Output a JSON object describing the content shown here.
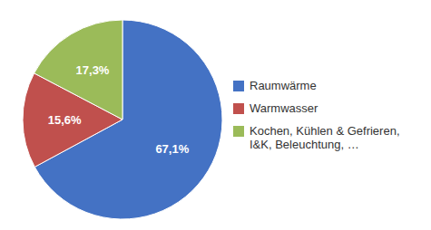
{
  "chart_data": {
    "type": "pie",
    "categories": [
      "Raumwärme",
      "Warmwasser",
      "Kochen, Kühlen & Gefrieren,\nI&K, Beleuchtung, …"
    ],
    "values": [
      67.1,
      15.6,
      17.3
    ],
    "value_labels": [
      "67,1%",
      "15,6%",
      "17,3%"
    ],
    "colors": [
      "#4472C4",
      "#C0504D",
      "#9BBB59"
    ],
    "data_labels": true,
    "legend": "right"
  }
}
